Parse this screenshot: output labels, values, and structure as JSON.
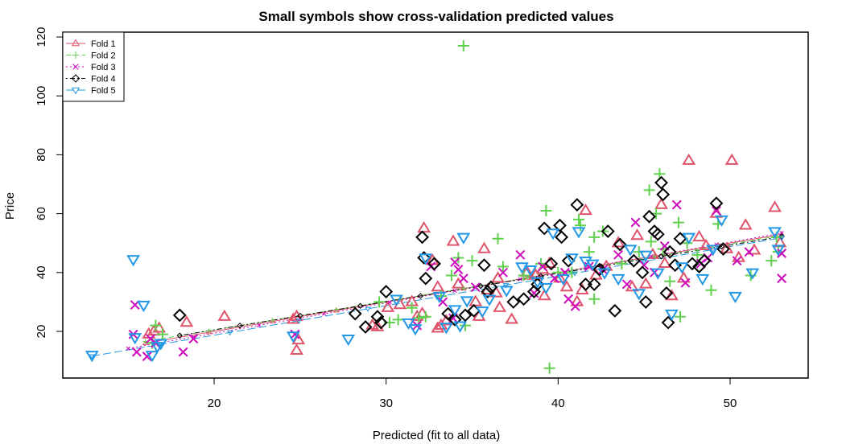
{
  "chart_data": {
    "type": "scatter",
    "title": "Small symbols show cross-validation predicted values",
    "xlabel": "Predicted (fit to all data)",
    "ylabel": "Price",
    "xlim": [
      12.5,
      54
    ],
    "ylim": [
      13,
      121
    ],
    "xticks": [
      20,
      30,
      40,
      50
    ],
    "yticks": [
      20,
      40,
      60,
      80,
      100,
      120
    ],
    "legend_position": "top-left",
    "grid": false,
    "series": [
      {
        "name": "Fold 1",
        "color": "#DF536B",
        "symbol": "triangle-up",
        "dash": "solid",
        "points": [
          [
            16.2,
            19
          ],
          [
            16.5,
            20
          ],
          [
            16.8,
            21
          ],
          [
            18.4,
            23
          ],
          [
            20.6,
            25
          ],
          [
            24.6,
            24
          ],
          [
            24.8,
            25
          ],
          [
            24.8,
            13.5
          ],
          [
            24.9,
            17
          ],
          [
            29.2,
            22
          ],
          [
            29.5,
            21.5
          ],
          [
            30.1,
            28
          ],
          [
            30.8,
            29
          ],
          [
            31.5,
            30
          ],
          [
            31.8,
            25
          ],
          [
            32.1,
            26
          ],
          [
            32.2,
            55
          ],
          [
            32.7,
            44
          ],
          [
            33.0,
            35
          ],
          [
            33.0,
            21
          ],
          [
            33.2,
            22
          ],
          [
            33.5,
            23.5
          ],
          [
            33.9,
            50.5
          ],
          [
            34.2,
            36
          ],
          [
            35.2,
            30
          ],
          [
            35.4,
            25
          ],
          [
            35.7,
            48
          ],
          [
            35.9,
            34
          ],
          [
            36.4,
            33
          ],
          [
            36.6,
            28
          ],
          [
            36.5,
            38
          ],
          [
            37.3,
            24
          ],
          [
            38.2,
            40
          ],
          [
            38.7,
            39
          ],
          [
            39.1,
            41
          ],
          [
            39.2,
            32
          ],
          [
            39.5,
            43
          ],
          [
            40.1,
            38
          ],
          [
            40.5,
            35
          ],
          [
            41.1,
            30
          ],
          [
            41.4,
            34
          ],
          [
            41.6,
            61
          ],
          [
            42.2,
            39
          ],
          [
            42.8,
            42
          ],
          [
            43.5,
            50
          ],
          [
            44.3,
            35
          ],
          [
            44.6,
            52.5
          ],
          [
            45.1,
            36
          ],
          [
            45.5,
            46
          ],
          [
            46.0,
            63
          ],
          [
            46.2,
            43
          ],
          [
            46.6,
            32
          ],
          [
            47.3,
            38
          ],
          [
            47.6,
            78
          ],
          [
            48.2,
            52
          ],
          [
            48.6,
            49
          ],
          [
            49.2,
            60
          ],
          [
            49.8,
            48
          ],
          [
            50.1,
            78
          ],
          [
            50.5,
            45
          ],
          [
            50.9,
            56
          ],
          [
            51.4,
            47.5
          ],
          [
            52.6,
            62
          ],
          [
            52.9,
            50
          ]
        ]
      },
      {
        "name": "Fold 2",
        "color": "#61D04F",
        "symbol": "plus",
        "dash": "dashed",
        "points": [
          [
            16.4,
            16
          ],
          [
            16.6,
            22
          ],
          [
            17.0,
            19
          ],
          [
            29.6,
            30
          ],
          [
            30.2,
            23
          ],
          [
            30.7,
            24
          ],
          [
            31.5,
            28
          ],
          [
            31.9,
            24.5
          ],
          [
            32.3,
            25
          ],
          [
            33.2,
            32
          ],
          [
            33.8,
            39
          ],
          [
            34.2,
            45
          ],
          [
            34.5,
            117
          ],
          [
            34.6,
            22
          ],
          [
            35.0,
            44
          ],
          [
            36.5,
            51.5
          ],
          [
            36.8,
            42
          ],
          [
            38.0,
            39
          ],
          [
            39.0,
            43
          ],
          [
            39.3,
            61
          ],
          [
            39.5,
            7.5
          ],
          [
            40.0,
            40
          ],
          [
            40.8,
            40
          ],
          [
            41.2,
            58
          ],
          [
            41.3,
            56
          ],
          [
            41.8,
            47
          ],
          [
            42.1,
            52
          ],
          [
            42.1,
            31
          ],
          [
            42.6,
            54
          ],
          [
            43.7,
            43
          ],
          [
            44.7,
            47
          ],
          [
            45.3,
            68
          ],
          [
            45.4,
            50.5
          ],
          [
            45.7,
            60
          ],
          [
            45.9,
            73.5
          ],
          [
            46.1,
            48
          ],
          [
            46.5,
            37
          ],
          [
            47.0,
            57
          ],
          [
            47.1,
            25
          ],
          [
            47.5,
            50
          ],
          [
            48.1,
            46
          ],
          [
            48.9,
            34
          ],
          [
            49.3,
            56.5
          ],
          [
            51.2,
            39
          ],
          [
            52.4,
            44
          ],
          [
            52.7,
            52
          ],
          [
            52.8,
            47
          ]
        ]
      },
      {
        "name": "Fold 3",
        "color": "#CD0BBC",
        "symbol": "cross",
        "dash": "dotted",
        "points": [
          [
            15.3,
            19
          ],
          [
            15.4,
            29
          ],
          [
            15.5,
            13
          ],
          [
            16.1,
            11.5
          ],
          [
            16.3,
            17.5
          ],
          [
            16.6,
            16
          ],
          [
            18.2,
            13
          ],
          [
            18.8,
            17.5
          ],
          [
            24.7,
            19
          ],
          [
            31.8,
            22
          ],
          [
            32.6,
            42
          ],
          [
            33.3,
            30
          ],
          [
            33.9,
            24.5
          ],
          [
            34.0,
            43.5
          ],
          [
            34.2,
            41
          ],
          [
            34.5,
            38
          ],
          [
            35.2,
            35
          ],
          [
            36.8,
            40
          ],
          [
            37.8,
            46
          ],
          [
            38.6,
            33
          ],
          [
            39.1,
            42
          ],
          [
            39.8,
            38
          ],
          [
            40.4,
            40
          ],
          [
            40.6,
            31
          ],
          [
            41.0,
            28.5
          ],
          [
            41.8,
            42
          ],
          [
            42.6,
            41
          ],
          [
            43.5,
            46
          ],
          [
            44.0,
            36
          ],
          [
            44.5,
            57
          ],
          [
            45.0,
            42.5
          ],
          [
            45.6,
            40
          ],
          [
            46.2,
            49
          ],
          [
            46.9,
            63
          ],
          [
            47.4,
            36.5
          ],
          [
            48.3,
            43
          ],
          [
            48.7,
            45
          ],
          [
            49.2,
            61
          ],
          [
            50.4,
            44
          ],
          [
            51.1,
            47
          ],
          [
            53.0,
            46.5
          ],
          [
            53.0,
            38
          ]
        ]
      },
      {
        "name": "Fold 4",
        "color": "#000000",
        "symbol": "diamond",
        "dash": "dotdash",
        "points": [
          [
            18.0,
            25.5
          ],
          [
            28.2,
            26
          ],
          [
            28.8,
            21.5
          ],
          [
            29.5,
            25
          ],
          [
            29.7,
            23
          ],
          [
            30.0,
            33.5
          ],
          [
            32.1,
            52
          ],
          [
            32.2,
            45
          ],
          [
            32.3,
            38
          ],
          [
            32.8,
            43
          ],
          [
            33.6,
            26
          ],
          [
            34.0,
            24
          ],
          [
            34.6,
            25.5
          ],
          [
            35.1,
            27
          ],
          [
            35.7,
            42.5
          ],
          [
            35.9,
            33.5
          ],
          [
            36.1,
            35
          ],
          [
            37.4,
            30
          ],
          [
            38.0,
            31
          ],
          [
            38.6,
            33.5
          ],
          [
            38.8,
            36
          ],
          [
            39.2,
            55
          ],
          [
            39.6,
            43
          ],
          [
            40.1,
            56
          ],
          [
            40.2,
            52
          ],
          [
            40.6,
            44
          ],
          [
            41.1,
            63
          ],
          [
            41.6,
            36
          ],
          [
            42.1,
            36
          ],
          [
            42.4,
            41
          ],
          [
            42.9,
            54
          ],
          [
            43.3,
            27
          ],
          [
            43.6,
            49.5
          ],
          [
            44.4,
            44
          ],
          [
            44.9,
            40
          ],
          [
            45.1,
            30
          ],
          [
            45.3,
            59
          ],
          [
            45.6,
            54
          ],
          [
            45.8,
            53
          ],
          [
            46.0,
            70.5
          ],
          [
            46.1,
            66.5
          ],
          [
            46.3,
            33
          ],
          [
            46.4,
            23
          ],
          [
            46.5,
            47
          ],
          [
            46.8,
            42.5
          ],
          [
            47.1,
            51.5
          ],
          [
            47.8,
            43
          ],
          [
            48.2,
            42
          ],
          [
            48.5,
            44
          ],
          [
            49.2,
            63.5
          ],
          [
            49.6,
            48
          ]
        ]
      },
      {
        "name": "Fold 5",
        "color": "#2297E6",
        "symbol": "triangle-down",
        "dash": "longdash",
        "points": [
          [
            12.9,
            12
          ],
          [
            15.3,
            44.5
          ],
          [
            15.4,
            18
          ],
          [
            15.9,
            29
          ],
          [
            16.4,
            12
          ],
          [
            16.7,
            15
          ],
          [
            16.9,
            16
          ],
          [
            24.6,
            18.5
          ],
          [
            27.8,
            17.5
          ],
          [
            30.6,
            31
          ],
          [
            31.3,
            23
          ],
          [
            31.7,
            21
          ],
          [
            32.3,
            45
          ],
          [
            33.1,
            32
          ],
          [
            33.5,
            21.5
          ],
          [
            34.0,
            27.5
          ],
          [
            34.3,
            22
          ],
          [
            34.5,
            52
          ],
          [
            34.7,
            30.5
          ],
          [
            35.6,
            27
          ],
          [
            36.0,
            31
          ],
          [
            37.0,
            34
          ],
          [
            37.9,
            42
          ],
          [
            38.4,
            41
          ],
          [
            38.8,
            37
          ],
          [
            39.3,
            35
          ],
          [
            39.7,
            53.5
          ],
          [
            40.3,
            38
          ],
          [
            40.8,
            45
          ],
          [
            41.2,
            54
          ],
          [
            41.6,
            44
          ],
          [
            42.0,
            43
          ],
          [
            42.7,
            40
          ],
          [
            43.5,
            38
          ],
          [
            44.2,
            48
          ],
          [
            44.7,
            33
          ],
          [
            45.1,
            46
          ],
          [
            45.8,
            40
          ],
          [
            46.6,
            26
          ],
          [
            47.2,
            42
          ],
          [
            47.6,
            52
          ],
          [
            48.4,
            38
          ],
          [
            49.0,
            48
          ],
          [
            49.5,
            58
          ],
          [
            50.3,
            32
          ],
          [
            51.3,
            40
          ],
          [
            52.6,
            54
          ],
          [
            52.8,
            48
          ]
        ]
      }
    ],
    "fit_lines": [
      {
        "name": "Fold 1",
        "start": [
          16.0,
          16.0
        ],
        "end": [
          53.0,
          53.0
        ]
      },
      {
        "name": "Fold 2",
        "start": [
          16.0,
          16.6
        ],
        "end": [
          53.0,
          52.6
        ]
      },
      {
        "name": "Fold 3",
        "start": [
          15.0,
          14.2
        ],
        "end": [
          53.0,
          53.4
        ]
      },
      {
        "name": "Fold 4",
        "start": [
          18.0,
          18.6
        ],
        "end": [
          53.0,
          52.2
        ]
      },
      {
        "name": "Fold 5",
        "start": [
          12.9,
          11.6
        ],
        "end": [
          53.0,
          51.8
        ]
      }
    ]
  }
}
